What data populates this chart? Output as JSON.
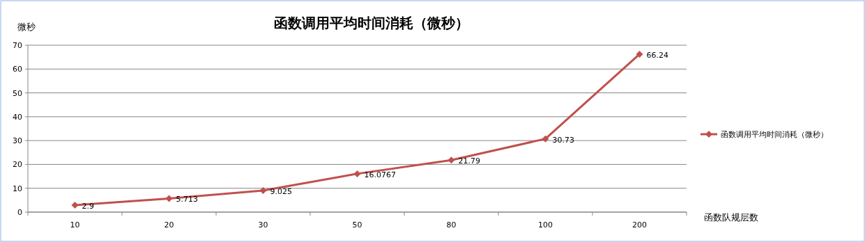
{
  "chart_data": {
    "type": "line",
    "title": "函数调用平均时间消耗（微秒）",
    "ylabel": "微秒",
    "xlabel": "函数队规层数",
    "categories": [
      "10",
      "20",
      "30",
      "50",
      "80",
      "100",
      "200"
    ],
    "series": [
      {
        "name": "函数调用平均时间消耗（微秒）",
        "color": "#c0504d",
        "values": [
          2.9,
          5.713,
          9.025,
          16.0767,
          21.79,
          30.73,
          66.24
        ]
      }
    ],
    "ylim": [
      0,
      70
    ],
    "yticks": [
      0,
      10,
      20,
      30,
      40,
      50,
      60,
      70
    ],
    "grid": "y",
    "legend": "right",
    "marker": "diamond",
    "data_labels": true
  }
}
